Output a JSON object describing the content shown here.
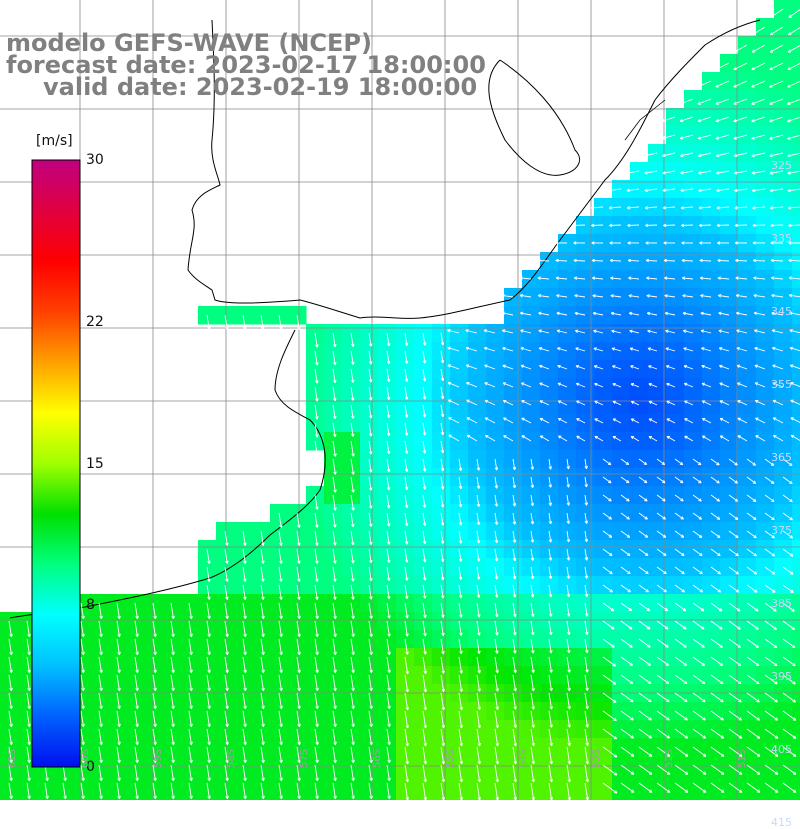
{
  "header": {
    "model": "modelo GEFS-WAVE (NCEP)",
    "forecast": "forecast date: 2023-02-17 18:00:00",
    "valid": "valid date: 2023-02-19 18:00:00"
  },
  "colorbar": {
    "unit": "[m/s]",
    "ticks": [
      {
        "label": "30",
        "value": 30
      },
      {
        "label": "22",
        "value": 22
      },
      {
        "label": "15",
        "value": 15
      },
      {
        "label": "8",
        "value": 8
      },
      {
        "label": "0",
        "value": 0
      }
    ],
    "colors": [
      "#0010f0",
      "#0060ff",
      "#00c0ff",
      "#00ffff",
      "#00ff80",
      "#00e000",
      "#a0ff00",
      "#ffff00",
      "#ffa000",
      "#ff4000",
      "#ff0000",
      "#e00040",
      "#c00080"
    ]
  },
  "lat_labels": [
    "325",
    "335",
    "345",
    "355",
    "365",
    "375",
    "385",
    "395",
    "405",
    "415"
  ],
  "lon_labels": [
    "61S",
    "60S",
    "59S",
    "58S",
    "57S",
    "56S",
    "55S",
    "54S",
    "53S",
    "52S",
    "51S"
  ],
  "wind_field_note_colors": {
    "weak": "#0030ff",
    "moderate": "#00d0ff",
    "strong": "#20ff90"
  }
}
